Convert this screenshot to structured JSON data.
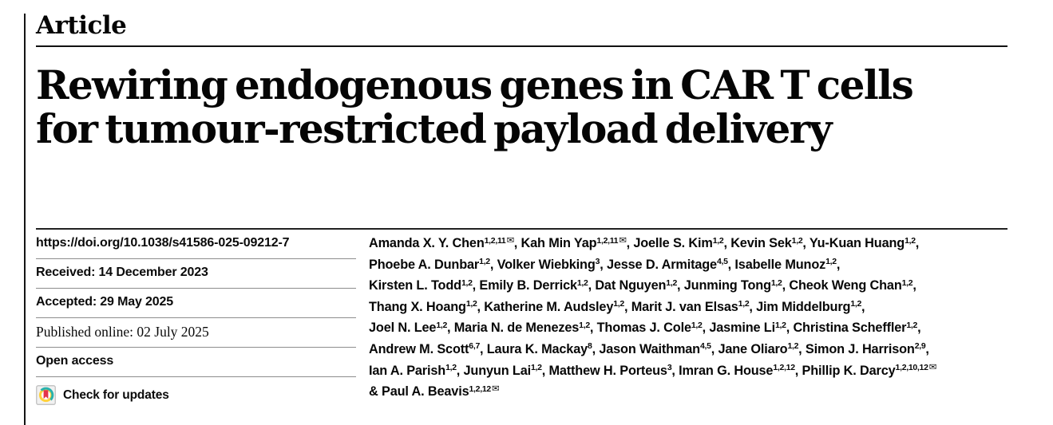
{
  "header": {
    "article_label": "Article",
    "title_line1": "Rewiring endogenous genes in CAR T cells",
    "title_line2": "for tumour-restricted payload delivery"
  },
  "metadata": {
    "doi": "https://doi.org/10.1038/s41586-025-09212-7",
    "received": "Received: 14 December 2023",
    "accepted": "Accepted: 29 May 2025",
    "published_online": "Published online: 02 July 2025",
    "open_access": "Open access",
    "check_for_updates": "Check for updates"
  },
  "icons": {
    "crossmark_icon": "crossmark-circle-with-red-bookmark",
    "mail_icon": "envelope"
  },
  "colors": {
    "text": "#0a0a0a",
    "rule_dark": "#1a1a1a",
    "rule_gray": "#8d8d8d",
    "crossmark_yellow": "#ffd23c",
    "crossmark_teal": "#28b2ae",
    "crossmark_red": "#e4334b",
    "badge_bg": "#f1f1f1",
    "badge_border": "#bcbcbc"
  },
  "authors": {
    "mail_symbol": "✉",
    "lines": [
      [
        {
          "name": "Amanda X. Y. Chen",
          "sup": "1,2,11",
          "mail": true,
          "sep": ", "
        },
        {
          "name": "Kah Min Yap",
          "sup": "1,2,11",
          "mail": true,
          "sep": ", "
        },
        {
          "name": "Joelle S. Kim",
          "sup": "1,2",
          "sep": ", "
        },
        {
          "name": "Kevin Sek",
          "sup": "1,2",
          "sep": ", "
        },
        {
          "name": "Yu-Kuan Huang",
          "sup": "1,2",
          "sep": ","
        }
      ],
      [
        {
          "name": "Phoebe A. Dunbar",
          "sup": "1,2",
          "sep": ", "
        },
        {
          "name": "Volker Wiebking",
          "sup": "3",
          "sep": ", "
        },
        {
          "name": "Jesse D. Armitage",
          "sup": "4,5",
          "sep": ", "
        },
        {
          "name": "Isabelle Munoz",
          "sup": "1,2",
          "sep": ","
        }
      ],
      [
        {
          "name": "Kirsten L. Todd",
          "sup": "1,2",
          "sep": ", "
        },
        {
          "name": "Emily B. Derrick",
          "sup": "1,2",
          "sep": ", "
        },
        {
          "name": "Dat Nguyen",
          "sup": "1,2",
          "sep": ", "
        },
        {
          "name": "Junming Tong",
          "sup": "1,2",
          "sep": ", "
        },
        {
          "name": "Cheok Weng Chan",
          "sup": "1,2",
          "sep": ","
        }
      ],
      [
        {
          "name": "Thang X. Hoang",
          "sup": "1,2",
          "sep": ", "
        },
        {
          "name": "Katherine M. Audsley",
          "sup": "1,2",
          "sep": ", "
        },
        {
          "name": "Marit J. van Elsas",
          "sup": "1,2",
          "sep": ", "
        },
        {
          "name": "Jim Middelburg",
          "sup": "1,2",
          "sep": ","
        }
      ],
      [
        {
          "name": "Joel N. Lee",
          "sup": "1,2",
          "sep": ", "
        },
        {
          "name": "Maria N. de Menezes",
          "sup": "1,2",
          "sep": ", "
        },
        {
          "name": "Thomas J. Cole",
          "sup": "1,2",
          "sep": ", "
        },
        {
          "name": "Jasmine Li",
          "sup": "1,2",
          "sep": ", "
        },
        {
          "name": "Christina Scheffler",
          "sup": "1,2",
          "sep": ","
        }
      ],
      [
        {
          "name": "Andrew M. Scott",
          "sup": "6,7",
          "sep": ", "
        },
        {
          "name": "Laura K. Mackay",
          "sup": "8",
          "sep": ", "
        },
        {
          "name": "Jason Waithman",
          "sup": "4,5",
          "sep": ", "
        },
        {
          "name": "Jane Oliaro",
          "sup": "1,2",
          "sep": ", "
        },
        {
          "name": "Simon J. Harrison",
          "sup": "2,9",
          "sep": ","
        }
      ],
      [
        {
          "name": "Ian A. Parish",
          "sup": "1,2",
          "sep": ", "
        },
        {
          "name": "Junyun Lai",
          "sup": "1,2",
          "sep": ", "
        },
        {
          "name": "Matthew H. Porteus",
          "sup": "3",
          "sep": ", "
        },
        {
          "name": "Imran G. House",
          "sup": "1,2,12",
          "sep": ", "
        },
        {
          "name": "Phillip K. Darcy",
          "sup": "1,2,10,12",
          "mail": true,
          "sep": ""
        }
      ],
      [
        {
          "name": "& Paul A. Beavis",
          "sup": "1,2,12",
          "mail": true,
          "sep": ""
        }
      ]
    ]
  }
}
